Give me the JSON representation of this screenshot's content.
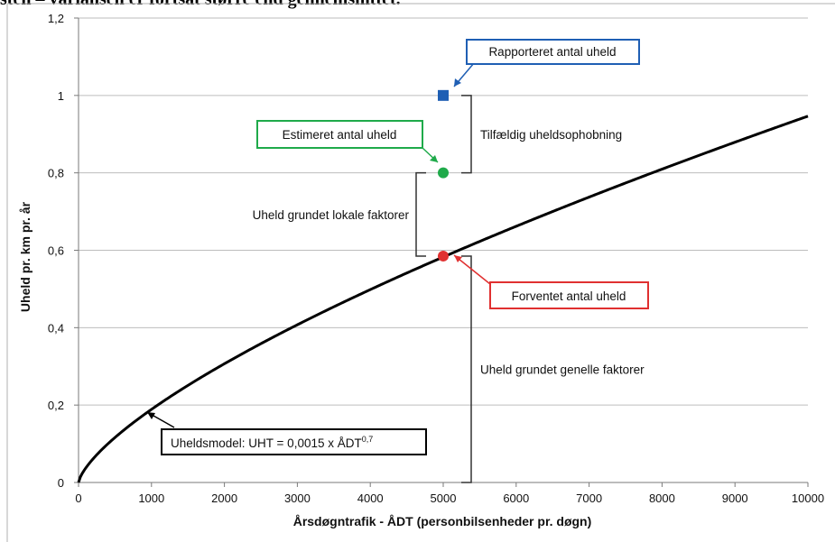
{
  "caption": "sten – variansen er fortsat større end gennemsnittet.",
  "chart_data": {
    "type": "line",
    "xlabel": "Årsdøgntrafik - ÅDT (personbilsenheder pr. døgn)",
    "ylabel": "Uheld pr. km pr. år",
    "xlim": [
      0,
      10000
    ],
    "ylim": [
      0,
      1.2
    ],
    "x_ticks": [
      "0",
      "1000",
      "2000",
      "3000",
      "4000",
      "5000",
      "6000",
      "7000",
      "8000",
      "9000",
      "10000"
    ],
    "y_ticks": [
      "0",
      "0,2",
      "0,4",
      "0,6",
      "0,8",
      "1",
      "1,2"
    ],
    "grid": "horizontal",
    "series": [
      {
        "name": "Uheldsmodel: UHT = 0,0015 x ÅDT",
        "coef": 0.0015,
        "exponent": 0.7,
        "exponent_label": "0,7",
        "color": "#000000"
      }
    ],
    "points": [
      {
        "label": "Rapporteret antal uheld",
        "x": 5000,
        "y": 1.0,
        "marker": "square",
        "color": "#1f5fb4"
      },
      {
        "label": "Estimeret antal uheld",
        "x": 5000,
        "y": 0.8,
        "marker": "circle",
        "color": "#1faa4a"
      },
      {
        "label": "Forventet antal uheld",
        "x": 5000,
        "y": 0.585,
        "marker": "circle",
        "color": "#e03030"
      }
    ],
    "brackets": [
      {
        "label": "Tilfældig uheldsophobning",
        "y_from": 0.8,
        "y_to": 1.0,
        "side": "right"
      },
      {
        "label": "Uheld grundet lokale faktorer",
        "y_from": 0.585,
        "y_to": 0.8,
        "side": "left"
      },
      {
        "label": "Uheld grundet genelle faktorer",
        "y_from": 0.0,
        "y_to": 0.585,
        "side": "right"
      }
    ],
    "model_label": "Uheldsmodel: UHT = 0,0015 x ÅDT",
    "model_label_sup": "0,7"
  }
}
